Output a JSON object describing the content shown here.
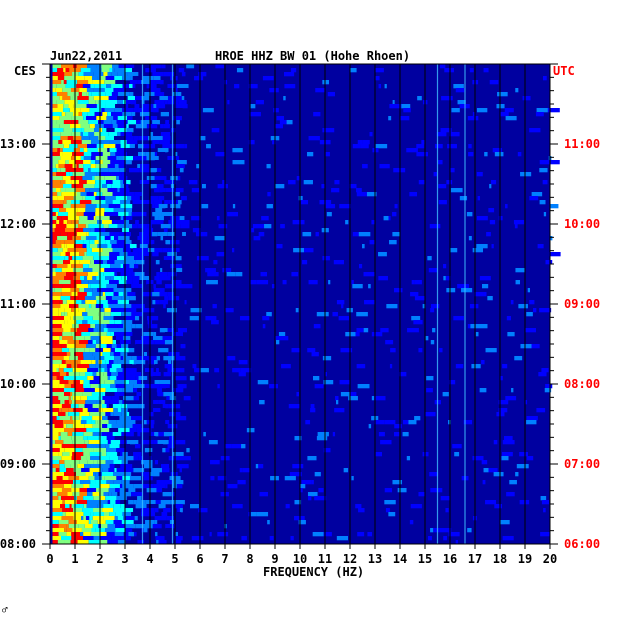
{
  "chart_data": {
    "type": "heatmap",
    "date": "Jun22,2011",
    "title": "HROE HHZ BW 01 (Hohe Rhoen)",
    "left_timezone": "CES",
    "right_timezone": "UTC",
    "xlabel": "FREQUENCY (HZ)",
    "xlim": [
      0,
      20
    ],
    "x_ticks": [
      "0",
      "1",
      "2",
      "3",
      "4",
      "5",
      "6",
      "7",
      "8",
      "9",
      "10",
      "11",
      "12",
      "13",
      "14",
      "15",
      "16",
      "17",
      "18",
      "19",
      "20"
    ],
    "y_range_local": [
      "08:00",
      "14:00"
    ],
    "y_ticks_left": [
      "08:00",
      "09:00",
      "10:00",
      "11:00",
      "12:00",
      "13:00"
    ],
    "y_ticks_right": [
      "06:00",
      "07:00",
      "08:00",
      "09:00",
      "10:00",
      "11:00"
    ],
    "color_scale": [
      "#0000a0",
      "#0000ff",
      "#0080ff",
      "#00ffff",
      "#80ff80",
      "#ffff00",
      "#ff8000",
      "#ff0000"
    ],
    "background_color": "#0000a0",
    "notable_lines_hz": [
      3.7,
      4.9,
      15.5,
      16.6
    ]
  },
  "colors": {
    "utc": "#ff0000",
    "local": "#000000",
    "grid": "#000000"
  },
  "footer_mark": "♂"
}
